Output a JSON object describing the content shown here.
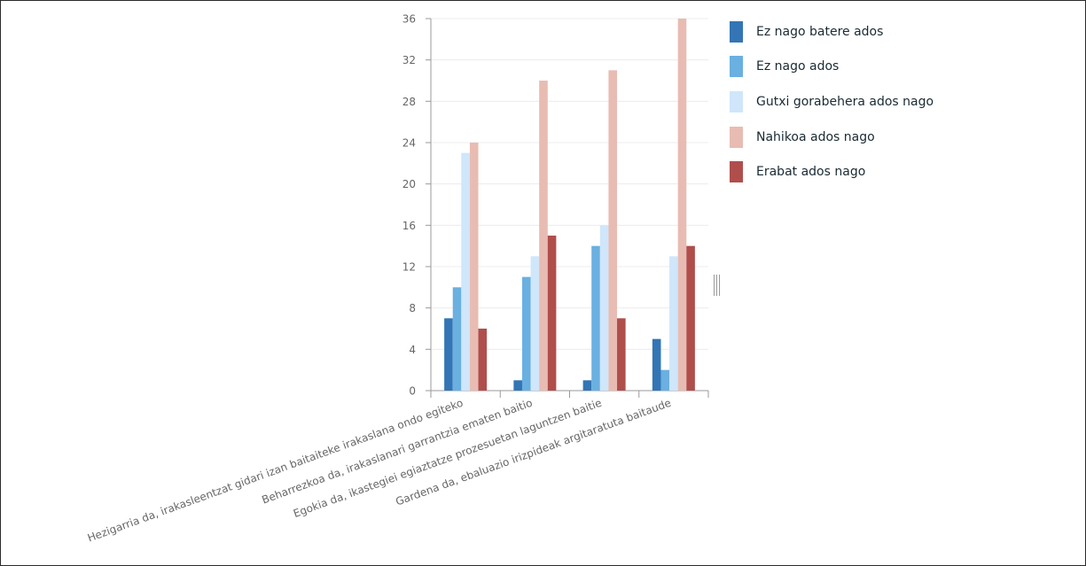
{
  "chart_data": {
    "type": "bar",
    "categories": [
      "Hezigarria da, irakasleentzat gidari izan baitaiteke irakaslana ondo egiteko",
      "Beharrezkoa da, irakaslanari garrantzia ematen baitio",
      "Egokia da, ikastegiei egiaztatze prozesuetan laguntzen baitie",
      "Gardena da, ebaluazio irizpideak argitaratuta baitaude"
    ],
    "series": [
      {
        "name": "Ez nago batere ados",
        "color": "#3375b5",
        "values": [
          7,
          1,
          1,
          5
        ]
      },
      {
        "name": "Ez nago ados",
        "color": "#6ab0e0",
        "values": [
          10,
          11,
          14,
          2
        ]
      },
      {
        "name": "Gutxi gorabehera ados nago",
        "color": "#cfe6fb",
        "values": [
          23,
          13,
          16,
          13
        ]
      },
      {
        "name": "Nahikoa ados nago",
        "color": "#e8bcb2",
        "values": [
          24,
          30,
          31,
          36
        ]
      },
      {
        "name": "Erabat ados nago",
        "color": "#b04e4c",
        "values": [
          6,
          15,
          7,
          14
        ]
      }
    ],
    "yticks": [
      "0",
      "4",
      "8",
      "12",
      "16",
      "20",
      "24",
      "28",
      "32",
      "36"
    ],
    "ylim": [
      0,
      36
    ],
    "grid": true,
    "legend_position": "right"
  }
}
